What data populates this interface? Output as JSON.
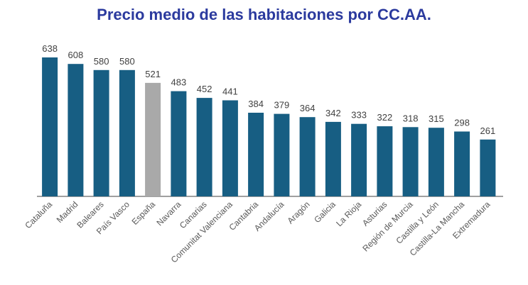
{
  "chart_data": {
    "type": "bar",
    "title": "Precio medio de las habitaciones por CC.AA.",
    "categories": [
      "Cataluña",
      "Madrid",
      "Baleares",
      "País Vasco",
      "España",
      "Navarra",
      "Canarias",
      "Comunitat Valenciana",
      "Cantabria",
      "Andalucía",
      "Aragón",
      "Galicia",
      "La Rioja",
      "Asturias",
      "Región de Murcia",
      "Castilla y León",
      "Castilla-La Mancha",
      "Extremadura"
    ],
    "values": [
      638,
      608,
      580,
      580,
      521,
      483,
      452,
      441,
      384,
      379,
      364,
      342,
      333,
      322,
      318,
      315,
      298,
      261
    ],
    "highlight_category": "España",
    "colors": {
      "bar": "#175e83",
      "highlight": "#a9a9a9",
      "title": "#2b3a9e"
    },
    "ylim": [
      0,
      638
    ],
    "grid": false,
    "legend": "none"
  }
}
